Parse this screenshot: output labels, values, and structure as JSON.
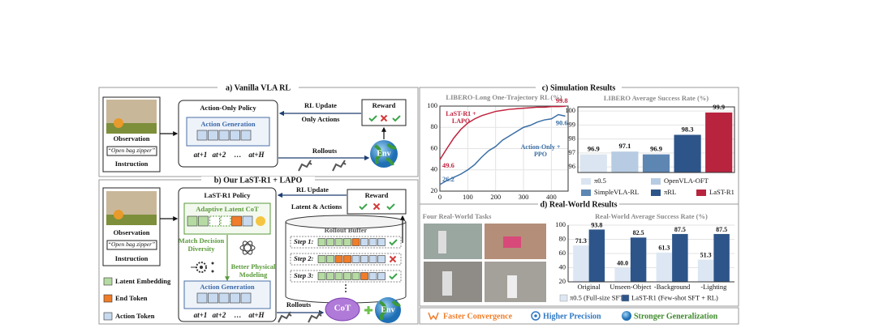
{
  "panel_a": {
    "title": "a) Vanilla VLA RL",
    "observation": "Observation",
    "instruction_text": "“Open bag zipper”",
    "instruction": "Instruction",
    "policy": "Action-Only Policy",
    "action_generation": "Action Generation",
    "actions": [
      "at+1",
      "at+2",
      "…",
      "at+H"
    ],
    "rl_update": "RL Update",
    "update_note": "Only Actions",
    "reward": "Reward",
    "rollouts": "Rollouts",
    "env": "Env"
  },
  "panel_b": {
    "title": "b) Our LaST-R1 + LAPO",
    "observation": "Observation",
    "instruction_text": "“Open bag zipper”",
    "instruction": "Instruction",
    "policy": "LaST-R1 Policy",
    "latent_cot": "Adaptive Latent CoT",
    "match": [
      "Match Decision",
      "Diversity"
    ],
    "physical": [
      "Better Physical",
      "Modeling"
    ],
    "action_generation": "Action Generation",
    "actions": [
      "at+1",
      "at+2",
      "…",
      "at+H"
    ],
    "legend": [
      "Latent Embedding",
      "End Token",
      "Action Token"
    ],
    "rl_update": "RL Update",
    "update_note": "Latent & Actions",
    "reward": "Reward",
    "buffer": "Rollout Buffer",
    "steps": [
      "Step 1:",
      "Step 2:",
      "Step 3:"
    ],
    "rollouts": "Rollouts",
    "cot": "CoT",
    "env": "Env"
  },
  "panel_c": {
    "title": "c) Simulation Results"
  },
  "panel_d": {
    "title": "d) Real-World Results",
    "tasks": "Four Real-World Tasks"
  },
  "highlights": [
    "Faster Convergence",
    "Higher Precision",
    "Stronger Generalization"
  ],
  "chart_data": [
    {
      "type": "line",
      "title": "LIBERO-Long One-Trajectory RL (%)",
      "x": [
        0,
        25,
        50,
        75,
        100,
        125,
        150,
        175,
        200,
        225,
        250,
        275,
        300,
        325,
        350,
        375,
        400,
        425,
        450
      ],
      "series": [
        {
          "name": "LaST-R1 + LAPO",
          "color": "#c0233e",
          "values": [
            49.6,
            60,
            70,
            78,
            84,
            88,
            91,
            93,
            95,
            96,
            97,
            97.5,
            98,
            98.5,
            99,
            99,
            99.5,
            99.5,
            99.8
          ]
        },
        {
          "name": "Action-Only + PPO",
          "color": "#3a6ea5",
          "values": [
            26.2,
            30,
            33,
            36,
            40,
            45,
            52,
            58,
            62,
            68,
            72,
            76,
            80,
            82,
            85,
            87,
            88,
            92,
            90.6
          ]
        }
      ],
      "xlim": [
        0,
        460
      ],
      "xticks": [
        0,
        100,
        200,
        300,
        400
      ],
      "ylim": [
        20,
        100
      ],
      "yticks": [
        20,
        40,
        60,
        80,
        100
      ],
      "grid": true
    },
    {
      "type": "bar",
      "title": "LIBERO Average Success Rate (%)",
      "categories": [
        "π0.5",
        "OpenVLA-OFT",
        "SimpleVLA-RL",
        "πRL",
        "LaST-R1"
      ],
      "values": [
        96.9,
        97.1,
        96.9,
        98.3,
        99.9
      ],
      "colors": [
        "#dbe5f1",
        "#b7cce2",
        "#5d86b3",
        "#2d558a",
        "#b8233e"
      ],
      "ylim": [
        95.6,
        100.3
      ],
      "yticks": [
        96,
        97,
        98,
        99,
        100
      ],
      "grid": true
    },
    {
      "type": "bar",
      "title": "Real-World Average Success Rate (%)",
      "categories": [
        "Original",
        "Unseen-Object",
        "-Background",
        "-Lighting"
      ],
      "series": [
        {
          "name": "π0.5 (Full-size SFT)",
          "color": "#dde7f3",
          "values": [
            71.3,
            40.0,
            61.3,
            51.3
          ],
          "value_labels": [
            "71.3",
            "40.0",
            "61.3",
            "51.3"
          ]
        },
        {
          "name": "LaST-R1 (Few-shot SFT + RL)",
          "color": "#2d558a",
          "values": [
            93.8,
            82.5,
            87.5,
            87.5
          ]
        }
      ],
      "ylim": [
        20,
        100
      ],
      "yticks": [
        20,
        40,
        60,
        80,
        100
      ],
      "grid": true
    }
  ]
}
